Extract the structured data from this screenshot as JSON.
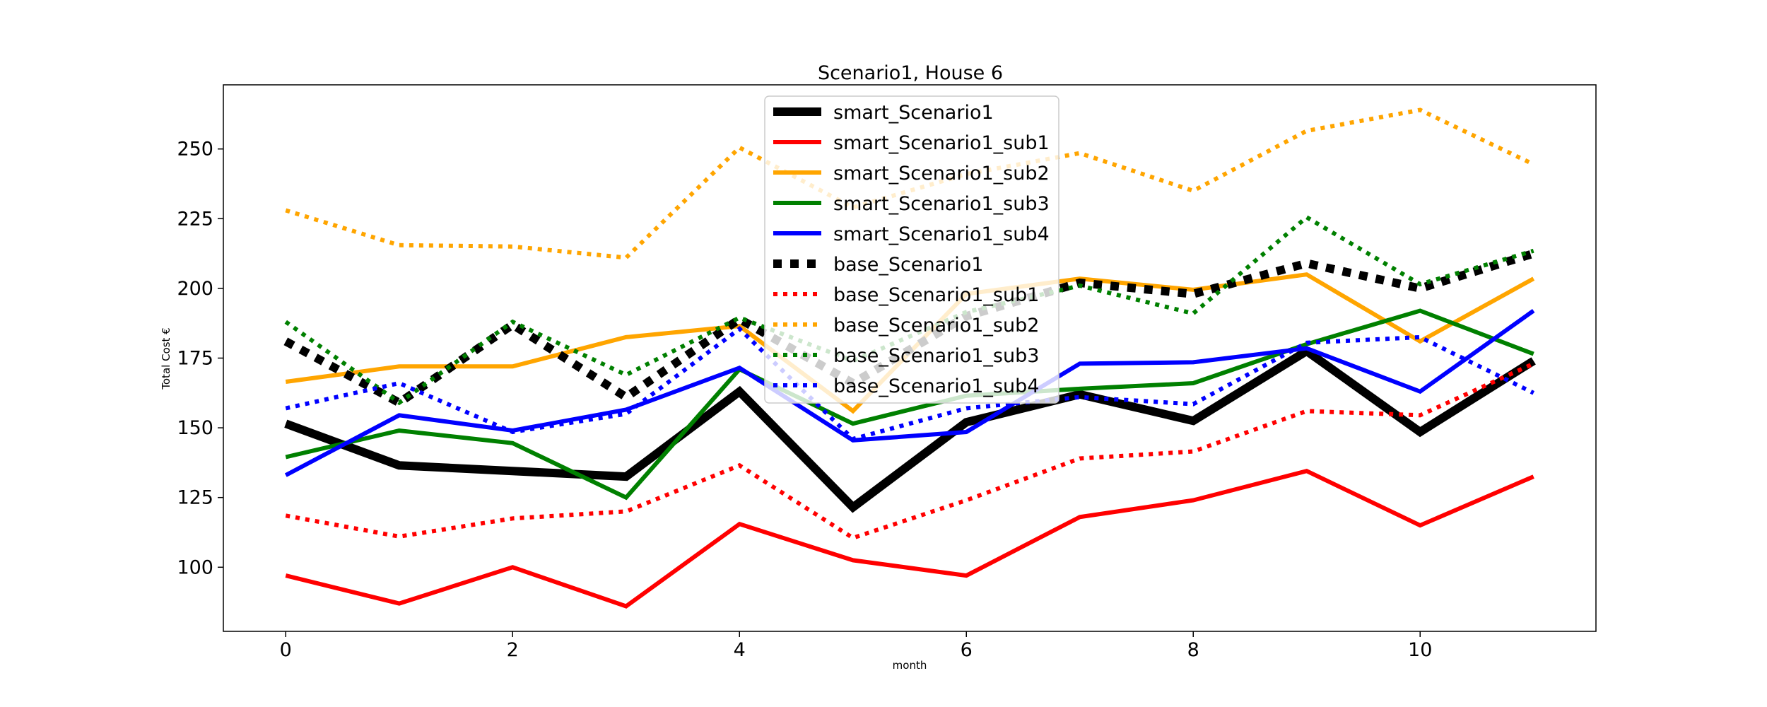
{
  "chart_data": {
    "type": "line",
    "title": "Scenario1, House 6",
    "xlabel": "month",
    "ylabel": "Total Cost €",
    "x": [
      0,
      1,
      2,
      3,
      4,
      5,
      6,
      7,
      8,
      9,
      10,
      11
    ],
    "xlim": [
      -0.55,
      11.55
    ],
    "ylim": [
      77,
      273
    ],
    "xticks": [
      0,
      2,
      4,
      6,
      8,
      10
    ],
    "yticks": [
      100,
      125,
      150,
      175,
      200,
      225,
      250
    ],
    "grid": false,
    "legend_position": "top-center",
    "series": [
      {
        "name": "smart_Scenario1",
        "color": "#000000",
        "style": "solid-thick",
        "values": [
          151.5,
          136.5,
          134.5,
          132.5,
          163,
          121.5,
          152,
          162,
          152.5,
          177.5,
          148.5,
          174
        ]
      },
      {
        "name": "smart_Scenario1_sub1",
        "color": "#ff0000",
        "style": "solid",
        "values": [
          97,
          87,
          100,
          86,
          115.5,
          102.5,
          97,
          118,
          124,
          134.5,
          115,
          132.5
        ]
      },
      {
        "name": "smart_Scenario1_sub2",
        "color": "#ffa500",
        "style": "solid",
        "values": [
          166.5,
          172,
          172,
          182.5,
          186.5,
          156,
          198,
          203.5,
          199.5,
          205,
          181,
          203.5
        ]
      },
      {
        "name": "smart_Scenario1_sub3",
        "color": "#008000",
        "style": "solid",
        "values": [
          139.5,
          149,
          144.5,
          125,
          171,
          151.5,
          161.5,
          164,
          166,
          180,
          192,
          176.5
        ]
      },
      {
        "name": "smart_Scenario1_sub4",
        "color": "#0000ff",
        "style": "solid",
        "values": [
          133,
          154.5,
          149,
          156.5,
          171.5,
          145.5,
          148.5,
          173,
          173.5,
          178.5,
          163,
          192
        ]
      },
      {
        "name": "base_Scenario1",
        "color": "#000000",
        "style": "dotted-thick",
        "values": [
          181,
          159,
          187,
          161,
          189,
          166,
          190,
          202,
          198,
          209,
          200,
          212.5
        ]
      },
      {
        "name": "base_Scenario1_sub1",
        "color": "#ff0000",
        "style": "dotted",
        "values": [
          118.5,
          111,
          117.5,
          120,
          136.5,
          110.5,
          124,
          139,
          141.5,
          156,
          154.5,
          173
        ]
      },
      {
        "name": "base_Scenario1_sub2",
        "color": "#ffa500",
        "style": "dotted",
        "values": [
          228,
          215.5,
          215,
          211,
          250.5,
          229,
          241,
          248.5,
          235,
          256.5,
          264,
          244.5
        ]
      },
      {
        "name": "base_Scenario1_sub3",
        "color": "#008000",
        "style": "dotted",
        "values": [
          188,
          159,
          188,
          169,
          189.5,
          174,
          191.5,
          201,
          191,
          225.5,
          201.5,
          213.5
        ]
      },
      {
        "name": "base_Scenario1_sub4",
        "color": "#0000ff",
        "style": "dotted",
        "values": [
          157,
          166,
          148.5,
          155,
          185.5,
          146,
          157,
          161,
          158.5,
          180.5,
          182.5,
          162.5
        ]
      }
    ]
  }
}
